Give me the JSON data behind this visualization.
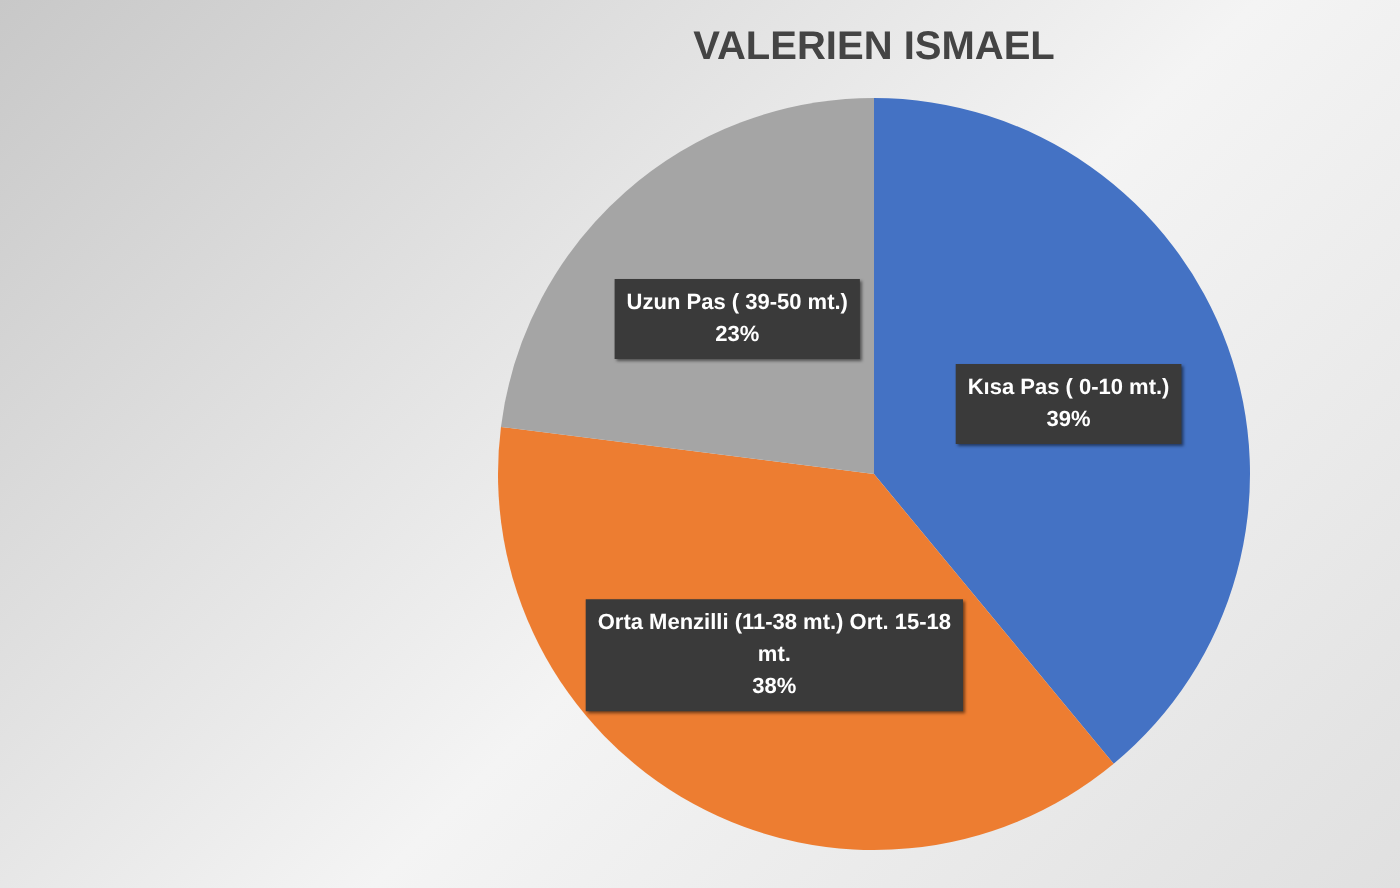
{
  "chart_data": {
    "type": "pie",
    "title": "VALERIEN ISMAEL",
    "categories": [
      "Kısa Pas ( 0-10 mt.)",
      "Orta Menzilli (11-38 mt.) Ort. 15-18 mt.",
      "Uzun Pas ( 39-50 mt.)"
    ],
    "values": [
      39,
      38,
      23
    ],
    "colors": [
      "#4472c4",
      "#ed7d31",
      "#a5a5a5"
    ],
    "value_labels": [
      "39%",
      "38%",
      "23%"
    ],
    "legend": false
  }
}
